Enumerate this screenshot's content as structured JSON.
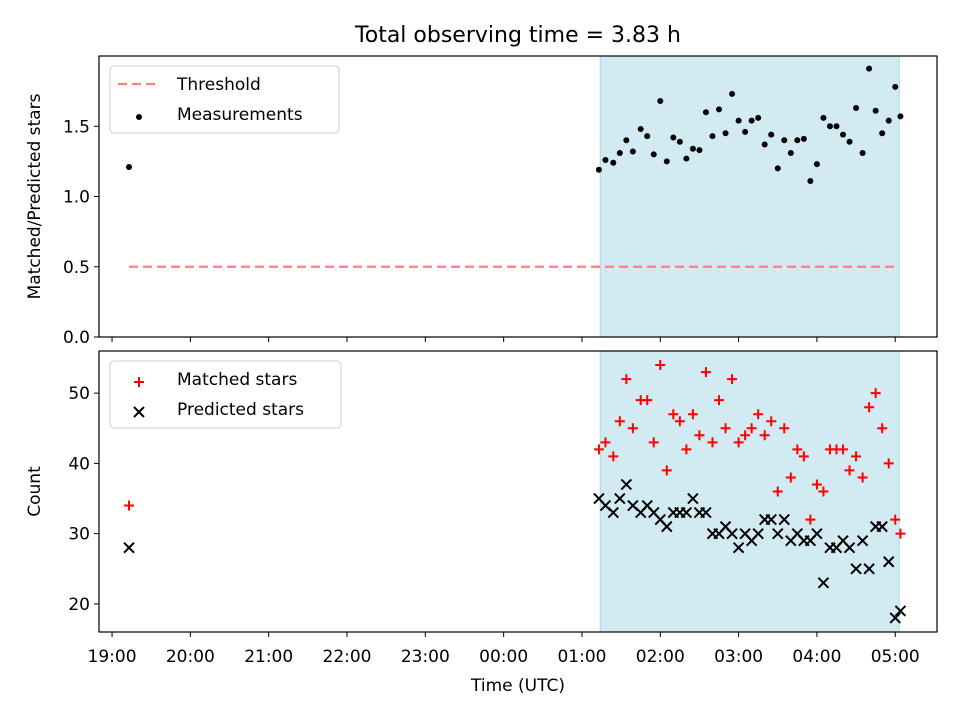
{
  "title": "Total observing time = 3.83 h",
  "chart_data": [
    {
      "type": "scatter",
      "panel": "top",
      "xlabel": "",
      "ylabel": "Matched/Predicted stars",
      "ylim": [
        0,
        2.0
      ],
      "yticks": [
        "0.0",
        "0.5",
        "1.0",
        "1.5"
      ],
      "yticks_values": [
        0.0,
        0.5,
        1.0,
        1.5
      ],
      "shaded_span": [
        "01:14",
        "05:03"
      ],
      "legend_position": "upper-left",
      "legend": [
        {
          "label": "Threshold",
          "style": "dashed-line",
          "color": "#ff7f7f"
        },
        {
          "label": "Measurements",
          "style": "dot",
          "color": "#000000"
        }
      ],
      "threshold": {
        "name": "Threshold",
        "y": 0.5,
        "x_start": "19:13",
        "x_end": "05:00",
        "color": "#ff7f7f"
      },
      "series": [
        {
          "name": "Measurements",
          "marker": "dot",
          "color": "#000000",
          "points": [
            [
              "19:13",
              1.21
            ],
            [
              "01:13",
              1.19
            ],
            [
              "01:18",
              1.26
            ],
            [
              "01:24",
              1.24
            ],
            [
              "01:29",
              1.31
            ],
            [
              "01:34",
              1.4
            ],
            [
              "01:39",
              1.32
            ],
            [
              "01:45",
              1.48
            ],
            [
              "01:50",
              1.43
            ],
            [
              "01:55",
              1.3
            ],
            [
              "02:00",
              1.68
            ],
            [
              "02:05",
              1.25
            ],
            [
              "02:10",
              1.42
            ],
            [
              "02:15",
              1.39
            ],
            [
              "02:20",
              1.27
            ],
            [
              "02:25",
              1.34
            ],
            [
              "02:30",
              1.33
            ],
            [
              "02:35",
              1.6
            ],
            [
              "02:40",
              1.43
            ],
            [
              "02:45",
              1.62
            ],
            [
              "02:50",
              1.45
            ],
            [
              "02:55",
              1.73
            ],
            [
              "03:00",
              1.54
            ],
            [
              "03:05",
              1.46
            ],
            [
              "03:10",
              1.54
            ],
            [
              "03:15",
              1.56
            ],
            [
              "03:20",
              1.37
            ],
            [
              "03:25",
              1.44
            ],
            [
              "03:30",
              1.2
            ],
            [
              "03:35",
              1.4
            ],
            [
              "03:40",
              1.31
            ],
            [
              "03:45",
              1.4
            ],
            [
              "03:50",
              1.41
            ],
            [
              "03:55",
              1.11
            ],
            [
              "04:00",
              1.23
            ],
            [
              "04:05",
              1.56
            ],
            [
              "04:10",
              1.5
            ],
            [
              "04:15",
              1.5
            ],
            [
              "04:20",
              1.44
            ],
            [
              "04:25",
              1.39
            ],
            [
              "04:30",
              1.63
            ],
            [
              "04:35",
              1.31
            ],
            [
              "04:40",
              1.91
            ],
            [
              "04:45",
              1.61
            ],
            [
              "04:50",
              1.45
            ],
            [
              "04:55",
              1.54
            ],
            [
              "05:00",
              1.78
            ],
            [
              "05:04",
              1.57
            ]
          ]
        }
      ]
    },
    {
      "type": "scatter",
      "panel": "bottom",
      "xlabel": "Time (UTC)",
      "ylabel": "Count",
      "ylim": [
        16,
        56
      ],
      "yticks": [
        "20",
        "30",
        "40",
        "50"
      ],
      "yticks_values": [
        20,
        30,
        40,
        50
      ],
      "xticks": [
        "19:00",
        "20:00",
        "21:00",
        "22:00",
        "23:00",
        "00:00",
        "01:00",
        "02:00",
        "03:00",
        "04:00",
        "05:00"
      ],
      "xlim": [
        "18:50",
        "05:32"
      ],
      "shaded_span": [
        "01:14",
        "05:03"
      ],
      "legend_position": "upper-left",
      "legend": [
        {
          "label": "Matched stars",
          "style": "plus",
          "color": "#ff0000"
        },
        {
          "label": "Predicted stars",
          "style": "x",
          "color": "#000000"
        }
      ],
      "series": [
        {
          "name": "Matched stars",
          "marker": "plus",
          "color": "#ff0000",
          "points": [
            [
              "19:13",
              34
            ],
            [
              "01:13",
              42
            ],
            [
              "01:18",
              43
            ],
            [
              "01:24",
              41
            ],
            [
              "01:29",
              46
            ],
            [
              "01:34",
              52
            ],
            [
              "01:39",
              45
            ],
            [
              "01:45",
              49
            ],
            [
              "01:50",
              49
            ],
            [
              "01:55",
              43
            ],
            [
              "02:00",
              54
            ],
            [
              "02:05",
              39
            ],
            [
              "02:10",
              47
            ],
            [
              "02:15",
              46
            ],
            [
              "02:20",
              42
            ],
            [
              "02:25",
              47
            ],
            [
              "02:30",
              44
            ],
            [
              "02:35",
              53
            ],
            [
              "02:40",
              43
            ],
            [
              "02:45",
              49
            ],
            [
              "02:50",
              45
            ],
            [
              "02:55",
              52
            ],
            [
              "03:00",
              43
            ],
            [
              "03:05",
              44
            ],
            [
              "03:10",
              45
            ],
            [
              "03:15",
              47
            ],
            [
              "03:20",
              44
            ],
            [
              "03:25",
              46
            ],
            [
              "03:30",
              36
            ],
            [
              "03:35",
              45
            ],
            [
              "03:40",
              38
            ],
            [
              "03:45",
              42
            ],
            [
              "03:50",
              41
            ],
            [
              "03:55",
              32
            ],
            [
              "04:00",
              37
            ],
            [
              "04:05",
              36
            ],
            [
              "04:10",
              42
            ],
            [
              "04:15",
              42
            ],
            [
              "04:20",
              42
            ],
            [
              "04:25",
              39
            ],
            [
              "04:30",
              41
            ],
            [
              "04:35",
              38
            ],
            [
              "04:40",
              48
            ],
            [
              "04:45",
              50
            ],
            [
              "04:50",
              45
            ],
            [
              "04:55",
              40
            ],
            [
              "05:00",
              32
            ],
            [
              "05:04",
              30
            ]
          ]
        },
        {
          "name": "Predicted stars",
          "marker": "x",
          "color": "#000000",
          "points": [
            [
              "19:13",
              28
            ],
            [
              "01:13",
              35
            ],
            [
              "01:18",
              34
            ],
            [
              "01:24",
              33
            ],
            [
              "01:29",
              35
            ],
            [
              "01:34",
              37
            ],
            [
              "01:39",
              34
            ],
            [
              "01:45",
              33
            ],
            [
              "01:50",
              34
            ],
            [
              "01:55",
              33
            ],
            [
              "02:00",
              32
            ],
            [
              "02:05",
              31
            ],
            [
              "02:10",
              33
            ],
            [
              "02:15",
              33
            ],
            [
              "02:20",
              33
            ],
            [
              "02:25",
              35
            ],
            [
              "02:30",
              33
            ],
            [
              "02:35",
              33
            ],
            [
              "02:40",
              30
            ],
            [
              "02:45",
              30
            ],
            [
              "02:50",
              31
            ],
            [
              "02:55",
              30
            ],
            [
              "03:00",
              28
            ],
            [
              "03:05",
              30
            ],
            [
              "03:10",
              29
            ],
            [
              "03:15",
              30
            ],
            [
              "03:20",
              32
            ],
            [
              "03:25",
              32
            ],
            [
              "03:30",
              30
            ],
            [
              "03:35",
              32
            ],
            [
              "03:40",
              29
            ],
            [
              "03:45",
              30
            ],
            [
              "03:50",
              29
            ],
            [
              "03:55",
              29
            ],
            [
              "04:00",
              30
            ],
            [
              "04:05",
              23
            ],
            [
              "04:10",
              28
            ],
            [
              "04:15",
              28
            ],
            [
              "04:20",
              29
            ],
            [
              "04:25",
              28
            ],
            [
              "04:30",
              25
            ],
            [
              "04:35",
              29
            ],
            [
              "04:40",
              25
            ],
            [
              "04:45",
              31
            ],
            [
              "04:50",
              31
            ],
            [
              "04:55",
              26
            ],
            [
              "05:00",
              18
            ],
            [
              "05:04",
              19
            ]
          ]
        }
      ]
    }
  ],
  "colors": {
    "shade": "#add8e6",
    "threshold": "#ff7f7f",
    "matched": "#ff0000",
    "predicted": "#000000"
  }
}
